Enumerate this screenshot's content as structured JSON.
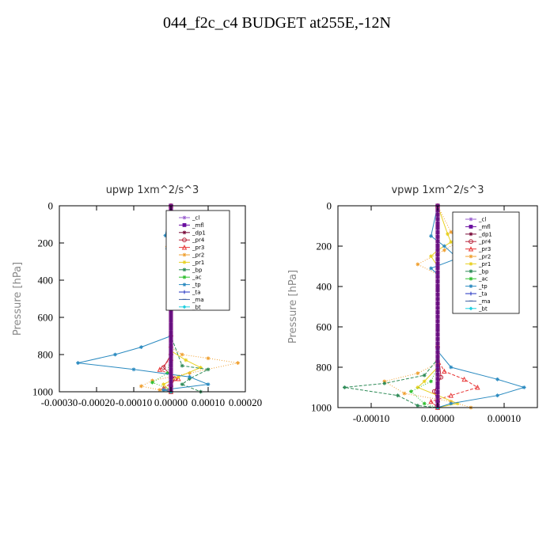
{
  "page": {
    "title": "044_f2c_c4  BUDGET at255E,-12N"
  },
  "chart_data": [
    {
      "type": "line",
      "title": "upwp  1xm^2/s^3",
      "ylabel": "Pressure [hPa]",
      "xlabel": "",
      "xlim": [
        -0.0003,
        0.0002
      ],
      "ylim": [
        1000,
        0
      ],
      "y_inverted": true,
      "xticks": [
        -0.0003,
        -0.0002,
        -0.0001,
        0.0,
        0.0001,
        0.0002
      ],
      "xtick_labels": [
        "-0.00030",
        "-0.00020",
        "-0.00010",
        "0.00000",
        "0.00010",
        "0.00020"
      ],
      "yticks": [
        0,
        200,
        400,
        600,
        800,
        1000
      ],
      "legend_position": "top-right inside",
      "series": [
        {
          "name": "_cl",
          "color": "#9a5fd0",
          "marker": "star",
          "x": [
            0,
            0,
            0,
            0,
            0,
            0,
            0,
            0,
            0
          ],
          "y": [
            0,
            100,
            200,
            300,
            400,
            600,
            800,
            900,
            1000
          ]
        },
        {
          "name": "_mfl",
          "color": "#6a0fa0",
          "marker": "square",
          "x": [
            0,
            0,
            0,
            0,
            0,
            0,
            0,
            0,
            0
          ],
          "y": [
            0,
            100,
            200,
            300,
            400,
            600,
            800,
            900,
            1000
          ]
        },
        {
          "name": "_dp1",
          "color": "#7a0a3a",
          "marker": "star",
          "x": [
            0,
            0,
            0,
            0,
            0,
            0,
            0,
            0,
            0
          ],
          "y": [
            0,
            100,
            200,
            300,
            400,
            600,
            800,
            900,
            1000
          ]
        },
        {
          "name": "_pr4",
          "color": "#b8243c",
          "marker": "circle",
          "x": [
            0,
            0,
            0,
            -2e-05,
            1e-05,
            0,
            0
          ],
          "y": [
            0,
            700,
            800,
            870,
            930,
            970,
            1000
          ]
        },
        {
          "name": "_pr3",
          "color": "#e83838",
          "marker": "triangle",
          "x": [
            0,
            0,
            0,
            -3e-05,
            2e-05,
            -2e-05,
            0
          ],
          "y": [
            0,
            750,
            820,
            880,
            930,
            980,
            1000
          ]
        },
        {
          "name": "_pr2",
          "color": "#f0a030",
          "marker": "star",
          "x": [
            0,
            0,
            1e-05,
            -1e-05,
            1e-05,
            -5e-06,
            0,
            0,
            3e-05,
            0.0001,
            0.00018,
            5e-05,
            -5e-05,
            -8e-05,
            -3e-05,
            0
          ],
          "y": [
            0,
            150,
            190,
            220,
            260,
            300,
            700,
            760,
            800,
            820,
            845,
            900,
            940,
            970,
            990,
            1000
          ]
        },
        {
          "name": "_pr1",
          "color": "#e8d020",
          "marker": "star",
          "x": [
            0,
            0,
            0,
            4e-05,
            8e-05,
            2e-05,
            -2e-05,
            0
          ],
          "y": [
            0,
            700,
            780,
            830,
            870,
            920,
            960,
            1000
          ]
        },
        {
          "name": "_bp",
          "color": "#2e8b57",
          "marker": "star",
          "x": [
            0,
            0,
            3e-05,
            0.0001,
            5e-05,
            3e-05,
            8e-05,
            0
          ],
          "y": [
            0,
            700,
            860,
            880,
            930,
            960,
            1000,
            1000
          ]
        },
        {
          "name": "_ac",
          "color": "#30c030",
          "marker": "star",
          "x": [
            0,
            0,
            -1e-05,
            -5e-05,
            0,
            0
          ],
          "y": [
            0,
            800,
            900,
            950,
            990,
            1000
          ]
        },
        {
          "name": "_tp",
          "color": "#2a8ac0",
          "marker": "star",
          "x": [
            0,
            -1.5e-05,
            1e-05,
            -1e-05,
            1.5e-05,
            0,
            0,
            -8e-05,
            -0.00015,
            -0.00025,
            -0.0001,
            5e-05,
            0.0001,
            -2e-05,
            0
          ],
          "y": [
            0,
            160,
            200,
            230,
            260,
            300,
            700,
            760,
            800,
            845,
            880,
            920,
            960,
            990,
            1000
          ]
        },
        {
          "name": "_ta",
          "color": "#2030c0",
          "marker": "cross",
          "x": [
            0,
            0,
            0,
            0,
            0,
            0
          ],
          "y": [
            0,
            200,
            400,
            600,
            800,
            1000
          ]
        },
        {
          "name": "_ma",
          "color": "#4060a0",
          "marker": "dash",
          "x": [
            0,
            0,
            0,
            0,
            0,
            0
          ],
          "y": [
            0,
            200,
            400,
            600,
            800,
            1000
          ]
        },
        {
          "name": "_bt",
          "color": "#20d0e0",
          "marker": "diamond",
          "x": [
            0,
            0,
            0,
            0,
            0,
            0
          ],
          "y": [
            0,
            200,
            400,
            600,
            800,
            1000
          ]
        }
      ]
    },
    {
      "type": "line",
      "title": "vpwp  1xm^2/s^3",
      "ylabel": "Pressure [hPa]",
      "xlabel": "",
      "xlim": [
        -0.00015,
        0.00015
      ],
      "ylim": [
        1000,
        0
      ],
      "y_inverted": true,
      "xticks": [
        -0.0001,
        0.0,
        0.0001
      ],
      "xtick_labels": [
        "-0.00010",
        "0.00000",
        "0.00010"
      ],
      "yticks": [
        0,
        200,
        400,
        600,
        800,
        1000
      ],
      "legend_position": "top-right inside",
      "series": [
        {
          "name": "_cl",
          "color": "#9a5fd0",
          "marker": "star",
          "x": [
            0,
            0,
            0,
            0,
            0,
            0,
            0,
            0,
            0
          ],
          "y": [
            0,
            100,
            200,
            300,
            400,
            600,
            800,
            900,
            1000
          ]
        },
        {
          "name": "_mfl",
          "color": "#6a0fa0",
          "marker": "square",
          "x": [
            0,
            0,
            0,
            0,
            0,
            0,
            0,
            0,
            0
          ],
          "y": [
            0,
            100,
            200,
            300,
            400,
            600,
            800,
            900,
            1000
          ]
        },
        {
          "name": "_dp1",
          "color": "#7a0a3a",
          "marker": "star",
          "x": [
            0,
            0,
            0,
            0,
            0,
            0,
            0,
            0,
            0
          ],
          "y": [
            0,
            100,
            200,
            300,
            400,
            600,
            800,
            900,
            1000
          ]
        },
        {
          "name": "_pr4",
          "color": "#b8243c",
          "marker": "circle",
          "x": [
            0,
            0,
            5e-06,
            -5e-06,
            0,
            0
          ],
          "y": [
            0,
            700,
            850,
            920,
            970,
            1000
          ]
        },
        {
          "name": "_pr3",
          "color": "#e83838",
          "marker": "triangle",
          "x": [
            0,
            0,
            1e-05,
            4e-05,
            6e-05,
            2e-05,
            -1e-05,
            0
          ],
          "y": [
            0,
            760,
            820,
            860,
            900,
            940,
            970,
            1000
          ]
        },
        {
          "name": "_pr2",
          "color": "#f0a030",
          "marker": "star",
          "x": [
            0,
            2e-05,
            3e-05,
            1e-05,
            -3e-05,
            0,
            0,
            0,
            -3e-05,
            -8e-05,
            -5e-05,
            2e-05,
            5e-05,
            0
          ],
          "y": [
            0,
            130,
            180,
            220,
            290,
            340,
            700,
            780,
            830,
            870,
            930,
            970,
            1000,
            1000
          ]
        },
        {
          "name": "_pr1",
          "color": "#e8d020",
          "marker": "star",
          "x": [
            0,
            1.5e-05,
            2e-05,
            0,
            -1e-05,
            0,
            0,
            0,
            -2e-05,
            -3e-05,
            0,
            3e-05,
            0
          ],
          "y": [
            0,
            140,
            180,
            220,
            250,
            300,
            700,
            800,
            870,
            900,
            940,
            980,
            1000
          ]
        },
        {
          "name": "_bp",
          "color": "#2e8b57",
          "marker": "star",
          "x": [
            0,
            0,
            -2e-05,
            -8e-05,
            -0.00014,
            -6e-05,
            -3e-05,
            0
          ],
          "y": [
            0,
            760,
            840,
            880,
            900,
            940,
            990,
            1000
          ]
        },
        {
          "name": "_ac",
          "color": "#30c030",
          "marker": "star",
          "x": [
            0,
            0,
            -1e-05,
            -4e-05,
            -2e-05,
            0
          ],
          "y": [
            0,
            800,
            870,
            920,
            980,
            1000
          ]
        },
        {
          "name": "_tp",
          "color": "#2a8ac0",
          "marker": "star",
          "x": [
            0,
            -1e-05,
            1e-05,
            3e-05,
            -1e-05,
            0,
            0,
            2e-05,
            9e-05,
            0.00013,
            9e-05,
            2e-05,
            0
          ],
          "y": [
            0,
            150,
            200,
            260,
            310,
            340,
            720,
            800,
            860,
            900,
            940,
            980,
            1000
          ]
        },
        {
          "name": "_ta",
          "color": "#2030c0",
          "marker": "cross",
          "x": [
            0,
            0,
            0,
            0,
            0,
            0
          ],
          "y": [
            0,
            200,
            400,
            600,
            800,
            1000
          ]
        },
        {
          "name": "_ma",
          "color": "#4060a0",
          "marker": "dash",
          "x": [
            0,
            0,
            0,
            0,
            0,
            0
          ],
          "y": [
            0,
            200,
            400,
            600,
            800,
            1000
          ]
        },
        {
          "name": "_bt",
          "color": "#20d0e0",
          "marker": "diamond",
          "x": [
            0,
            0,
            0,
            0,
            0,
            0
          ],
          "y": [
            0,
            200,
            400,
            600,
            800,
            1000
          ]
        }
      ]
    }
  ]
}
